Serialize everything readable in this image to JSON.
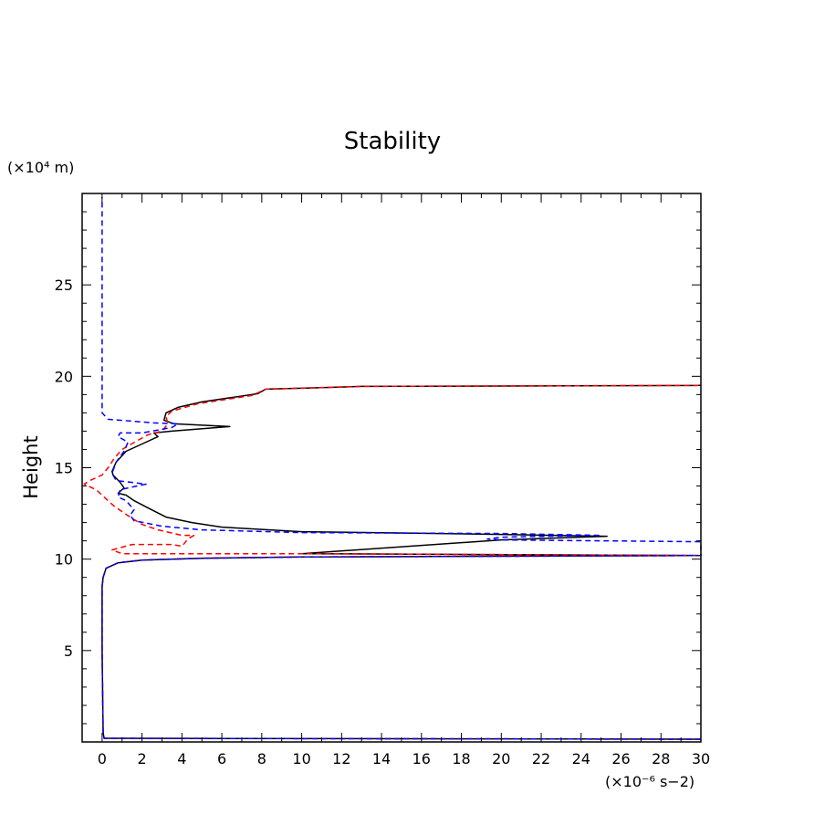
{
  "chart_data": {
    "type": "line",
    "title": "Stability",
    "ylabel": "Height",
    "y_units": "(×10⁴ m)",
    "x_units": "(×10⁻⁶ s−2)",
    "xlim": [
      -1,
      30
    ],
    "ylim": [
      0,
      30
    ],
    "x_ticks": [
      0,
      2,
      4,
      6,
      8,
      10,
      12,
      14,
      16,
      18,
      20,
      22,
      24,
      26,
      28,
      30
    ],
    "x_tick_labels": [
      "0",
      "2",
      "4",
      "6",
      "8",
      "10",
      "12",
      "14",
      "16",
      "18",
      "20",
      "22",
      "24",
      "26",
      "28",
      "30"
    ],
    "y_ticks": [
      5,
      10,
      15,
      20,
      25
    ],
    "y_tick_labels": [
      "5",
      "10",
      "15",
      "20",
      "25"
    ],
    "series": [
      {
        "name": "black-solid",
        "color": "#000000",
        "dash": "solid",
        "points": [
          [
            30,
            0.15
          ],
          [
            0.1,
            0.2
          ],
          [
            0.05,
            0.5
          ],
          [
            0,
            5
          ],
          [
            0,
            8.5
          ],
          [
            0.05,
            9
          ],
          [
            0.2,
            9.5
          ],
          [
            0.8,
            9.8
          ],
          [
            2,
            9.95
          ],
          [
            5,
            10.05
          ],
          [
            10,
            10.12
          ],
          [
            30,
            10.2
          ],
          [
            10,
            10.3
          ],
          [
            20,
            11.05
          ],
          [
            25.3,
            11.25
          ],
          [
            20,
            11.35
          ],
          [
            10,
            11.5
          ],
          [
            6,
            11.75
          ],
          [
            4.5,
            12.0
          ],
          [
            3.2,
            12.3
          ],
          [
            2.3,
            12.8
          ],
          [
            1.6,
            13.2
          ],
          [
            1.2,
            13.5
          ],
          [
            0.8,
            13.6
          ],
          [
            1.1,
            13.9
          ],
          [
            0.9,
            14.2
          ],
          [
            0.55,
            14.6
          ],
          [
            0.5,
            14.8
          ],
          [
            0.7,
            15.3
          ],
          [
            1.2,
            15.9
          ],
          [
            2.2,
            16.4
          ],
          [
            2.8,
            16.7
          ],
          [
            2.6,
            16.9
          ],
          [
            3.5,
            17.0
          ],
          [
            6.4,
            17.25
          ],
          [
            3.6,
            17.4
          ],
          [
            3.1,
            17.6
          ],
          [
            3.2,
            18.0
          ],
          [
            3.8,
            18.3
          ],
          [
            5,
            18.6
          ],
          [
            7.8,
            19.05
          ],
          [
            8.2,
            19.3
          ],
          [
            10,
            19.35
          ],
          [
            13,
            19.45
          ],
          [
            30,
            19.5
          ]
        ]
      },
      {
        "name": "red-dashed",
        "color": "#ff0000",
        "dash": "dashed",
        "points": [
          [
            30,
            0.15
          ],
          [
            0.1,
            0.2
          ],
          [
            0.05,
            0.5
          ],
          [
            0,
            5
          ],
          [
            0,
            8.5
          ],
          [
            0.05,
            9
          ],
          [
            0.2,
            9.5
          ],
          [
            0.8,
            9.8
          ],
          [
            2,
            9.95
          ],
          [
            5,
            10.05
          ],
          [
            10,
            10.12
          ],
          [
            30,
            10.2
          ],
          [
            10,
            10.3
          ],
          [
            1,
            10.3
          ],
          [
            0.5,
            10.5
          ],
          [
            1.5,
            10.8
          ],
          [
            3.5,
            10.8
          ],
          [
            4.0,
            10.7
          ],
          [
            4.3,
            11.1
          ],
          [
            4.6,
            11.3
          ],
          [
            4.0,
            11.3
          ],
          [
            2.8,
            11.6
          ],
          [
            2.0,
            11.9
          ],
          [
            1.4,
            12.3
          ],
          [
            0.6,
            12.9
          ],
          [
            0.2,
            13.3
          ],
          [
            -0.3,
            13.8
          ],
          [
            -0.9,
            14.1
          ],
          [
            -0.6,
            14.3
          ],
          [
            0,
            14.6
          ],
          [
            0.3,
            15.0
          ],
          [
            0.6,
            15.5
          ],
          [
            1.0,
            16.0
          ],
          [
            1.8,
            16.5
          ],
          [
            2.3,
            16.8
          ],
          [
            3.0,
            17.0
          ],
          [
            3.3,
            17.4
          ],
          [
            3.2,
            17.8
          ],
          [
            3.5,
            18.1
          ],
          [
            4.8,
            18.5
          ],
          [
            7.5,
            18.95
          ],
          [
            8.2,
            19.3
          ],
          [
            13,
            19.45
          ],
          [
            30,
            19.5
          ]
        ]
      },
      {
        "name": "blue-dashed",
        "color": "#0000ff",
        "dash": "dashed",
        "points": [
          [
            30,
            0.15
          ],
          [
            0.1,
            0.2
          ],
          [
            0.05,
            0.5
          ],
          [
            0,
            5
          ],
          [
            0,
            8.5
          ],
          [
            0.05,
            9
          ],
          [
            0.2,
            9.5
          ],
          [
            0.8,
            9.8
          ],
          [
            2,
            9.95
          ],
          [
            5,
            10.05
          ],
          [
            10,
            10.12
          ],
          [
            30,
            10.2
          ],
          [
            30,
            10.95
          ],
          [
            25,
            11.0
          ],
          [
            20,
            11.05
          ],
          [
            19.3,
            11.1
          ],
          [
            20,
            11.2
          ],
          [
            25,
            11.3
          ],
          [
            20,
            11.4
          ],
          [
            10,
            11.45
          ],
          [
            5,
            11.6
          ],
          [
            3,
            11.8
          ],
          [
            1.6,
            12.1
          ],
          [
            1.4,
            12.4
          ],
          [
            1.6,
            12.7
          ],
          [
            1.2,
            13.2
          ],
          [
            0.8,
            13.4
          ],
          [
            0.9,
            13.8
          ],
          [
            2.2,
            14.1
          ],
          [
            0.7,
            14.3
          ],
          [
            0.5,
            14.7
          ],
          [
            0.7,
            15.3
          ],
          [
            1.1,
            15.9
          ],
          [
            1.3,
            16.4
          ],
          [
            0.8,
            16.7
          ],
          [
            0.9,
            16.9
          ],
          [
            2,
            16.9
          ],
          [
            3.5,
            17.2
          ],
          [
            3.8,
            17.4
          ],
          [
            2.6,
            17.45
          ],
          [
            0.3,
            17.65
          ],
          [
            0,
            18.0
          ],
          [
            0,
            22
          ],
          [
            0,
            29.8
          ]
        ]
      }
    ]
  }
}
